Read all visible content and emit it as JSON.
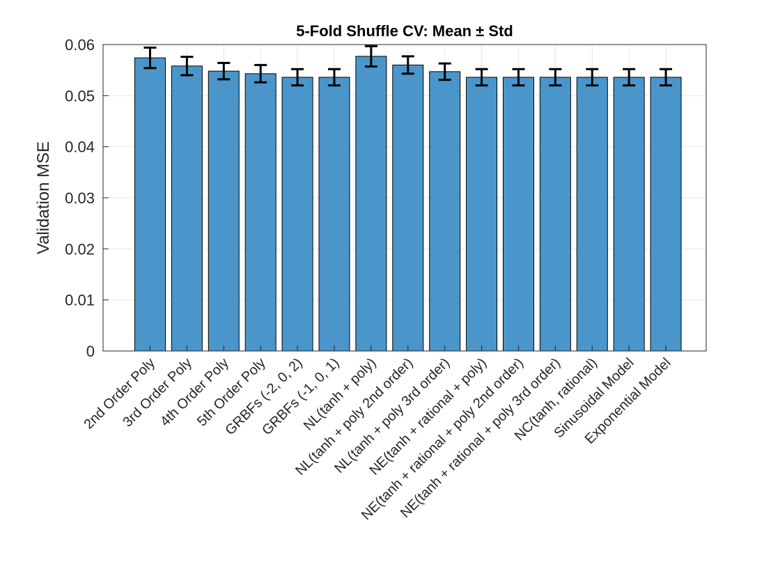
{
  "chart_data": {
    "type": "bar",
    "title": "5-Fold Shuffle CV: Mean ± Std",
    "xlabel": "",
    "ylabel": "Validation MSE",
    "ylim": [
      0,
      0.06
    ],
    "yticks": [
      "0",
      "0.01",
      "0.02",
      "0.03",
      "0.04",
      "0.05",
      "0.06"
    ],
    "grid": true,
    "legend": "none",
    "bar_color": "#4a96cb",
    "bar_edge_color": "#000000",
    "errorbar_color": "#000000",
    "categories": [
      "2nd Order Poly",
      "3rd Order Poly",
      "4th Order Poly",
      "5th Order Poly",
      "GRBFs (-2, 0, 2)",
      "GRBFs (-1, 0, 1)",
      "NL(tanh + poly)",
      "NL(tanh + poly 2nd order)",
      "NL(tanh + poly 3rd order)",
      "NE(tanh + rational + poly)",
      "NE(tanh + rational + poly 2nd order)",
      "NE(tanh + rational + poly 3rd order)",
      "NC(tanh, rational)",
      "Sinusoidal Model",
      "Exponential Model"
    ],
    "values": [
      0.0574,
      0.0558,
      0.0548,
      0.0543,
      0.0536,
      0.0536,
      0.0577,
      0.056,
      0.0547,
      0.0536,
      0.0536,
      0.0536,
      0.0536,
      0.0536,
      0.0536
    ],
    "errors": [
      0.002,
      0.0018,
      0.0016,
      0.0017,
      0.0016,
      0.0016,
      0.002,
      0.0017,
      0.0016,
      0.0016,
      0.0016,
      0.0016,
      0.0016,
      0.0016,
      0.0016
    ]
  }
}
